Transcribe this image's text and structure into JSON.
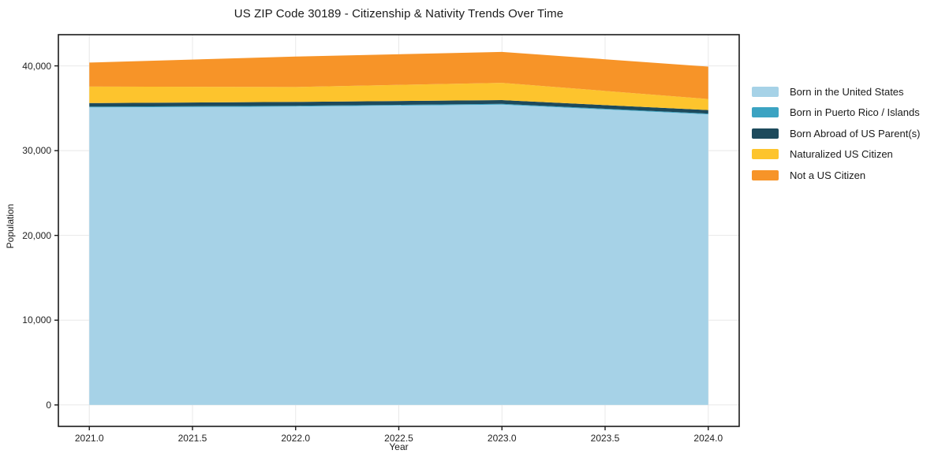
{
  "chart_data": {
    "type": "area",
    "stacked": true,
    "title": "US ZIP Code 30189 - Citizenship & Nativity Trends Over Time",
    "xlabel": "Year",
    "ylabel": "Population",
    "x": [
      2021,
      2022,
      2023,
      2024
    ],
    "series": [
      {
        "name": "Born in the United States",
        "color": "#a6d2e7",
        "values": [
          35100,
          35200,
          35430,
          34280
        ]
      },
      {
        "name": "Born in Puerto Rico / Islands",
        "color": "#3ba3c2",
        "values": [
          90,
          90,
          90,
          90
        ]
      },
      {
        "name": "Born Abroad of US Parent(s)",
        "color": "#1d4a5c",
        "values": [
          420,
          460,
          440,
          420
        ]
      },
      {
        "name": "Naturalized US Citizen",
        "color": "#fdc42d",
        "values": [
          1950,
          1760,
          2040,
          1300
        ]
      },
      {
        "name": "Not a US Citizen",
        "color": "#f79428",
        "values": [
          2830,
          3590,
          3650,
          3820
        ]
      }
    ],
    "totals_by_year": [
      40390,
      41100,
      41650,
      39910
    ],
    "xticks": [
      {
        "value": 2021.0,
        "label": "2021.0"
      },
      {
        "value": 2021.5,
        "label": "2021.5"
      },
      {
        "value": 2022.0,
        "label": "2022.0"
      },
      {
        "value": 2022.5,
        "label": "2022.5"
      },
      {
        "value": 2023.0,
        "label": "2023.0"
      },
      {
        "value": 2023.5,
        "label": "2023.5"
      },
      {
        "value": 2024.0,
        "label": "2024.0"
      }
    ],
    "yticks": [
      {
        "value": 0,
        "label": "0"
      },
      {
        "value": 10000,
        "label": "10,000"
      },
      {
        "value": 20000,
        "label": "20,000"
      },
      {
        "value": 30000,
        "label": "30,000"
      },
      {
        "value": 40000,
        "label": "40,000"
      }
    ],
    "xlim": [
      2020.85,
      2024.15
    ],
    "ylim": [
      -2530,
      43680
    ],
    "grid": true,
    "grid_color": "#e8e8e8",
    "frame_color": "#1a1a1a",
    "legend_position": "right-outside"
  }
}
